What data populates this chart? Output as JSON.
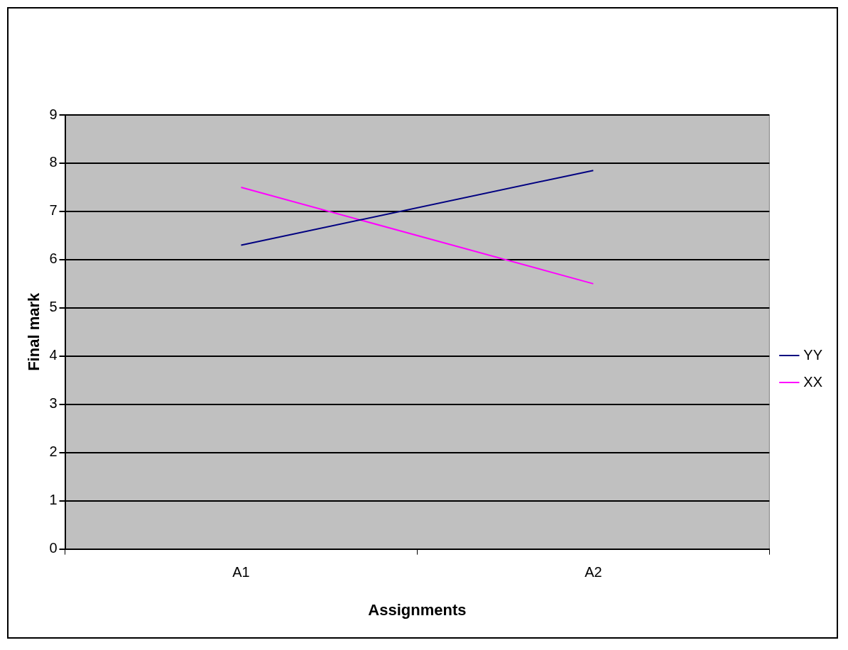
{
  "chart_data": {
    "type": "line",
    "xlabel": "Assignments",
    "ylabel": "Final mark",
    "categories": [
      "A1",
      "A2"
    ],
    "series": [
      {
        "name": "YY",
        "color": "#000080",
        "values": [
          6.3,
          7.85
        ]
      },
      {
        "name": "XX",
        "color": "#ff00ff",
        "values": [
          7.5,
          5.5
        ]
      }
    ],
    "ylim": [
      0,
      9
    ],
    "yticks": [
      0,
      1,
      2,
      3,
      4,
      5,
      6,
      7,
      8,
      9
    ],
    "grid": "y",
    "legend": "right",
    "marker": "none",
    "line_style": "solid"
  }
}
